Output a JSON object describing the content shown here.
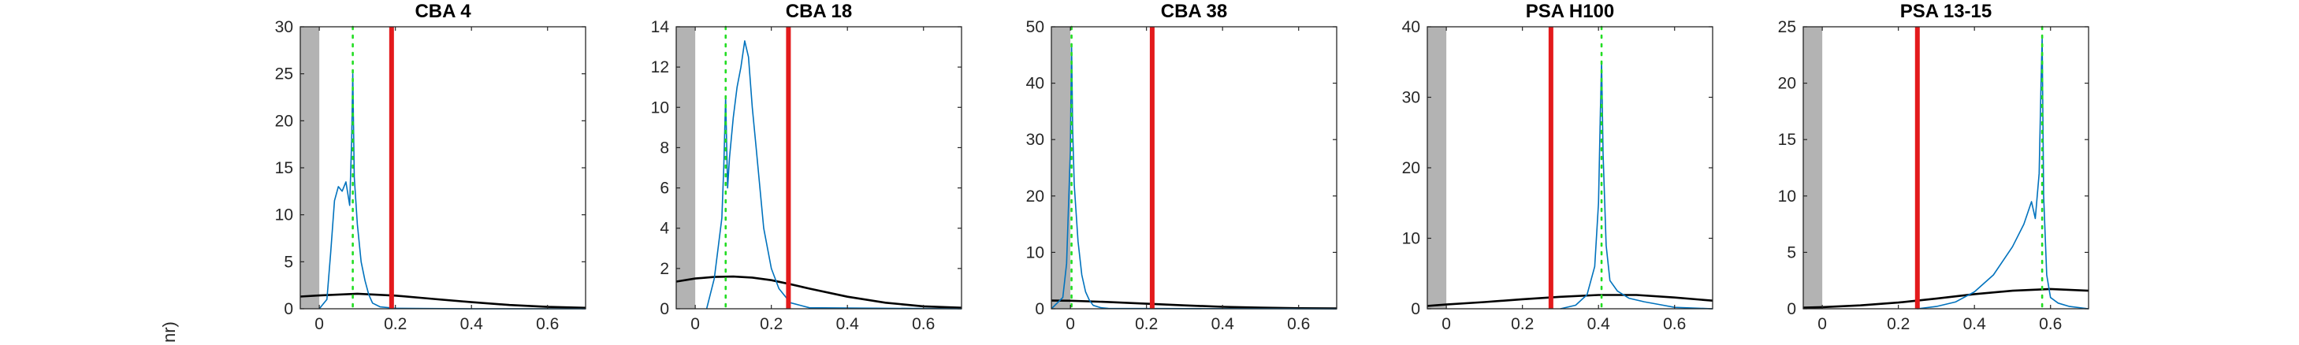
{
  "colors": {
    "histogram": "#0072BD",
    "threshold": "#E31A1C",
    "peak": "#22DD22",
    "fit": "#000000",
    "excluded_band": "#B3B3B3"
  },
  "ylabel_fragment": "nr)",
  "chart_data": [
    {
      "type": "line",
      "title": "CBA 4",
      "xlim": [
        -0.05,
        0.7
      ],
      "ylim": [
        0,
        30
      ],
      "xticks": [
        0,
        0.2,
        0.4,
        0.6
      ],
      "xtick_labels": [
        "0",
        "0.2",
        "0.4",
        "0.6"
      ],
      "yticks": [
        0,
        5,
        10,
        15,
        20,
        25,
        30
      ],
      "ytick_labels": [
        "0",
        "5",
        "10",
        "15",
        "20",
        "25",
        "30"
      ],
      "shaded_region": [
        -0.05,
        0
      ],
      "threshold_x": 0.19,
      "peak_x": 0.088,
      "series": [
        {
          "kind": "histogram",
          "x": [
            0.0,
            0.02,
            0.03,
            0.04,
            0.05,
            0.06,
            0.07,
            0.08,
            0.085,
            0.088,
            0.092,
            0.1,
            0.11,
            0.12,
            0.13,
            0.14,
            0.16,
            0.2,
            0.4,
            0.7
          ],
          "y": [
            0,
            1,
            6,
            11.5,
            13,
            12.5,
            13.5,
            11,
            18,
            25,
            14,
            9,
            5,
            3,
            1.5,
            0.6,
            0.2,
            0.05,
            0,
            0
          ]
        },
        {
          "kind": "fit",
          "x": [
            -0.05,
            0.0,
            0.1,
            0.2,
            0.3,
            0.4,
            0.5,
            0.6,
            0.7
          ],
          "y": [
            1.3,
            1.42,
            1.6,
            1.4,
            1.05,
            0.7,
            0.4,
            0.2,
            0.1
          ]
        }
      ]
    },
    {
      "type": "line",
      "title": "CBA 18",
      "xlim": [
        -0.05,
        0.7
      ],
      "ylim": [
        0,
        14
      ],
      "xticks": [
        0,
        0.2,
        0.4,
        0.6
      ],
      "xtick_labels": [
        "0",
        "0.2",
        "0.4",
        "0.6"
      ],
      "yticks": [
        0,
        2,
        4,
        6,
        8,
        10,
        12,
        14
      ],
      "ytick_labels": [
        "0",
        "2",
        "4",
        "6",
        "8",
        "10",
        "12",
        "14"
      ],
      "shaded_region": [
        -0.05,
        0
      ],
      "threshold_x": 0.245,
      "peak_x": 0.08,
      "series": [
        {
          "kind": "histogram",
          "x": [
            0.03,
            0.05,
            0.06,
            0.07,
            0.075,
            0.08,
            0.085,
            0.09,
            0.1,
            0.11,
            0.12,
            0.13,
            0.14,
            0.15,
            0.16,
            0.17,
            0.18,
            0.2,
            0.22,
            0.25,
            0.3,
            0.7
          ],
          "y": [
            0,
            1.5,
            3,
            4.5,
            7,
            10.5,
            6,
            7.5,
            9.5,
            11,
            12,
            13.3,
            12.5,
            10,
            8,
            6,
            4,
            2,
            1,
            0.3,
            0.05,
            0
          ]
        },
        {
          "kind": "fit",
          "x": [
            -0.05,
            0.0,
            0.05,
            0.1,
            0.15,
            0.2,
            0.25,
            0.3,
            0.4,
            0.5,
            0.6,
            0.7
          ],
          "y": [
            1.35,
            1.5,
            1.58,
            1.6,
            1.55,
            1.42,
            1.22,
            1.0,
            0.6,
            0.3,
            0.12,
            0.05
          ]
        }
      ]
    },
    {
      "type": "line",
      "title": "CBA 38",
      "xlim": [
        -0.05,
        0.7
      ],
      "ylim": [
        0,
        50
      ],
      "xticks": [
        0,
        0.2,
        0.4,
        0.6
      ],
      "xtick_labels": [
        "0",
        "0.2",
        "0.4",
        "0.6"
      ],
      "yticks": [
        0,
        10,
        20,
        30,
        40,
        50
      ],
      "ytick_labels": [
        "0",
        "10",
        "20",
        "30",
        "40",
        "50"
      ],
      "shaded_region": [
        -0.05,
        0
      ],
      "threshold_x": 0.215,
      "peak_x": 0.003,
      "series": [
        {
          "kind": "histogram",
          "x": [
            -0.05,
            -0.02,
            -0.01,
            0.0,
            0.003,
            0.006,
            0.01,
            0.015,
            0.02,
            0.03,
            0.04,
            0.05,
            0.06,
            0.08,
            0.1,
            0.7
          ],
          "y": [
            0,
            2,
            8,
            28,
            47,
            32,
            22,
            17,
            12,
            6,
            3,
            1.5,
            0.6,
            0.2,
            0.05,
            0
          ]
        },
        {
          "kind": "fit",
          "x": [
            -0.05,
            0.0,
            0.1,
            0.2,
            0.3,
            0.4,
            0.5,
            0.6,
            0.7
          ],
          "y": [
            1.45,
            1.42,
            1.2,
            0.9,
            0.6,
            0.35,
            0.2,
            0.1,
            0.05
          ]
        }
      ]
    },
    {
      "type": "line",
      "title": "PSA H100",
      "xlim": [
        -0.05,
        0.7
      ],
      "ylim": [
        0,
        40
      ],
      "xticks": [
        0,
        0.2,
        0.4,
        0.6
      ],
      "xtick_labels": [
        "0",
        "0.2",
        "0.4",
        "0.6"
      ],
      "yticks": [
        0,
        10,
        20,
        30,
        40
      ],
      "ytick_labels": [
        "0",
        "10",
        "20",
        "30",
        "40"
      ],
      "shaded_region": [
        -0.05,
        0
      ],
      "threshold_x": 0.275,
      "peak_x": 0.408,
      "series": [
        {
          "kind": "histogram",
          "x": [
            0.3,
            0.34,
            0.37,
            0.39,
            0.4,
            0.405,
            0.408,
            0.412,
            0.42,
            0.43,
            0.45,
            0.48,
            0.52,
            0.56,
            0.6,
            0.7
          ],
          "y": [
            0,
            0.5,
            2,
            6,
            15,
            28,
            35,
            22,
            9,
            4,
            2.5,
            1.5,
            1,
            0.6,
            0.2,
            0
          ]
        },
        {
          "kind": "fit",
          "x": [
            -0.05,
            0.0,
            0.1,
            0.2,
            0.3,
            0.4,
            0.5,
            0.6,
            0.7
          ],
          "y": [
            0.4,
            0.6,
            0.95,
            1.35,
            1.7,
            1.95,
            1.95,
            1.6,
            1.15
          ]
        }
      ]
    },
    {
      "type": "line",
      "title": "PSA 13-15",
      "xlim": [
        -0.05,
        0.7
      ],
      "ylim": [
        0,
        25
      ],
      "xticks": [
        0,
        0.2,
        0.4,
        0.6
      ],
      "xtick_labels": [
        "0",
        "0.2",
        "0.4",
        "0.6"
      ],
      "yticks": [
        0,
        5,
        10,
        15,
        20,
        25
      ],
      "ytick_labels": [
        "0",
        "5",
        "10",
        "15",
        "20",
        "25"
      ],
      "shaded_region": [
        -0.05,
        0
      ],
      "threshold_x": 0.25,
      "peak_x": 0.578,
      "series": [
        {
          "kind": "histogram",
          "x": [
            0.25,
            0.3,
            0.35,
            0.4,
            0.45,
            0.5,
            0.53,
            0.55,
            0.56,
            0.57,
            0.575,
            0.578,
            0.582,
            0.59,
            0.6,
            0.62,
            0.65,
            0.7
          ],
          "y": [
            0,
            0.2,
            0.6,
            1.5,
            3,
            5.5,
            7.5,
            9.5,
            8,
            12,
            20,
            24,
            10,
            3,
            1,
            0.5,
            0.2,
            0
          ]
        },
        {
          "kind": "fit",
          "x": [
            -0.05,
            0.0,
            0.1,
            0.2,
            0.3,
            0.4,
            0.5,
            0.6,
            0.7
          ],
          "y": [
            0.1,
            0.15,
            0.3,
            0.55,
            0.9,
            1.3,
            1.6,
            1.75,
            1.6
          ]
        }
      ]
    }
  ]
}
